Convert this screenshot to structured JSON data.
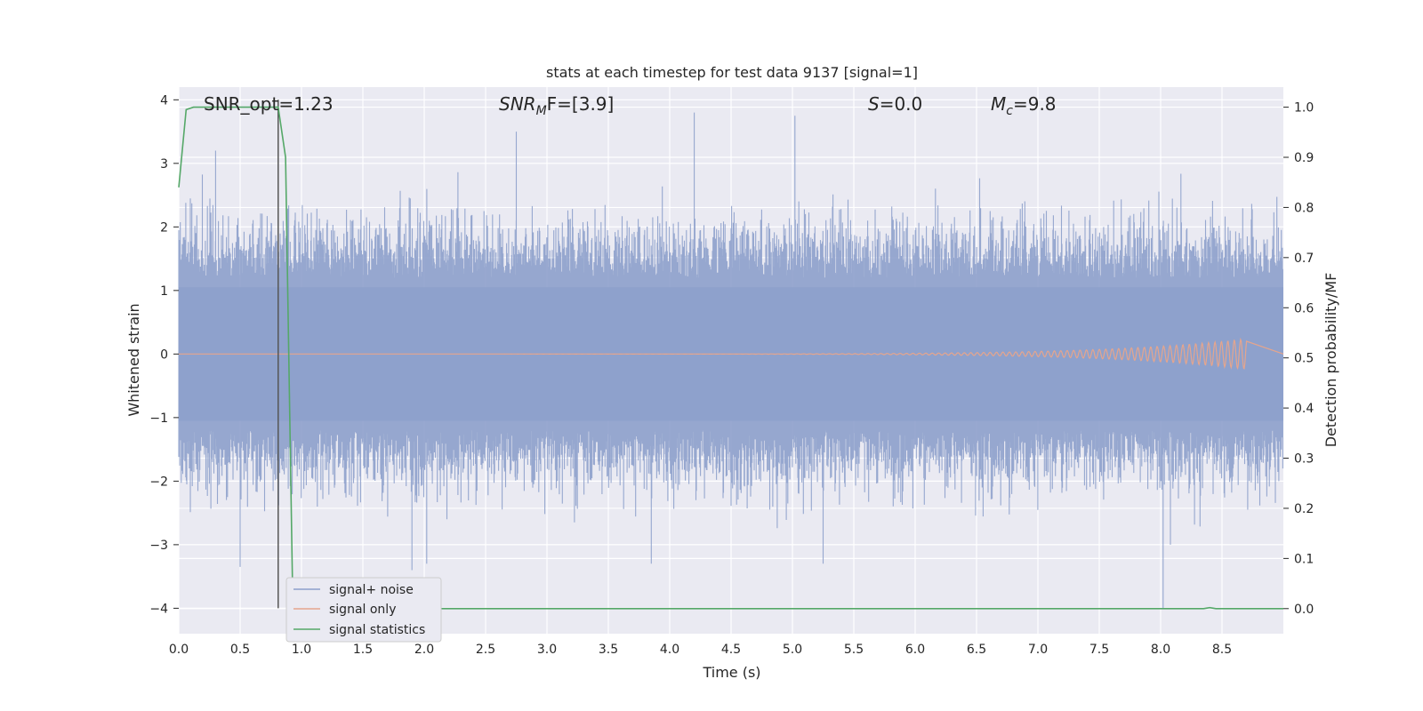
{
  "chart_data": {
    "type": "line",
    "title": "stats at each timestep for test data 9137 [signal=1]",
    "xlabel": "Time (s)",
    "ylabel_left": "Whitened strain",
    "ylabel_right": "Detection probability/MF",
    "xlim": [
      0.0,
      9.0
    ],
    "ylim_left": [
      -4.4,
      4.2
    ],
    "ylim_right": [
      -0.05,
      1.04
    ],
    "x_ticks": [
      "0.0",
      "0.5",
      "1.0",
      "1.5",
      "2.0",
      "2.5",
      "3.0",
      "3.5",
      "4.0",
      "4.5",
      "5.0",
      "5.5",
      "6.0",
      "6.5",
      "7.0",
      "7.5",
      "8.0",
      "8.5"
    ],
    "x_tick_values": [
      0,
      0.5,
      1,
      1.5,
      2,
      2.5,
      3,
      3.5,
      4,
      4.5,
      5,
      5.5,
      6,
      6.5,
      7,
      7.5,
      8,
      8.5
    ],
    "y_left_ticks": [
      "4",
      "3",
      "2",
      "1",
      "0",
      "−1",
      "−2",
      "−3",
      "−4"
    ],
    "y_left_tick_values": [
      4,
      3,
      2,
      1,
      0,
      -1,
      -2,
      -3,
      -4
    ],
    "y_right_ticks": [
      "1.0",
      "0.9",
      "0.8",
      "0.7",
      "0.6",
      "0.5",
      "0.4",
      "0.3",
      "0.2",
      "0.1",
      "0.0"
    ],
    "y_right_tick_values": [
      1.0,
      0.9,
      0.8,
      0.7,
      0.6,
      0.5,
      0.4,
      0.3,
      0.2,
      0.1,
      0.0
    ],
    "annotations": {
      "snr_opt": "SNR_opt=1.23",
      "snr_mf_base": "SNR",
      "snr_mf_sub": "M",
      "snr_mf_rest": "F=[3.9]",
      "s_label": "S",
      "s_rest": "=0.0",
      "mc_base": "M",
      "mc_sub": "c",
      "mc_rest": "=9.8"
    },
    "marker_line_x": 0.81,
    "series": [
      {
        "name": "signal+ noise",
        "axis": "left",
        "color": "#8da0cb",
        "envelope": "noise ~ ±1.8 typical, peaks to ±3.8",
        "spikes": [
          {
            "x": 0.3,
            "y": 3.2
          },
          {
            "x": 0.5,
            "y": -3.35
          },
          {
            "x": 1.9,
            "y": -3.4
          },
          {
            "x": 2.02,
            "y": -3.3
          },
          {
            "x": 2.75,
            "y": 3.5
          },
          {
            "x": 3.85,
            "y": -3.3
          },
          {
            "x": 4.2,
            "y": 3.8
          },
          {
            "x": 5.02,
            "y": 3.75
          },
          {
            "x": 5.25,
            "y": -3.3
          },
          {
            "x": 8.02,
            "y": -4.0
          },
          {
            "x": 8.08,
            "y": -3.0
          }
        ]
      },
      {
        "name": "signal only",
        "axis": "left",
        "color": "#e5a58d",
        "chirp_end_x": 8.7,
        "chirp_peak_amp": 0.24
      },
      {
        "name": "signal statistics",
        "axis": "right",
        "color": "#55a868",
        "points": [
          [
            0.0,
            0.84
          ],
          [
            0.06,
            0.995
          ],
          [
            0.12,
            1.0
          ],
          [
            0.3,
            1.0
          ],
          [
            0.5,
            1.0
          ],
          [
            0.8,
            1.0
          ],
          [
            0.81,
            1.0
          ],
          [
            0.87,
            0.9
          ],
          [
            0.93,
            0.0
          ],
          [
            8.35,
            0.0
          ],
          [
            8.4,
            0.002
          ],
          [
            8.45,
            0.0
          ],
          [
            9.0,
            0.0
          ]
        ]
      }
    ],
    "legend": {
      "position": "lower-left",
      "entries": [
        "signal+ noise",
        "signal only",
        "signal statistics"
      ]
    },
    "colors": {
      "plot_bg": "#eaeaf2",
      "grid": "#ffffff",
      "marker_line": "#555555",
      "legend_bg": "#eaeaf2",
      "legend_border": "#cccccc"
    }
  }
}
